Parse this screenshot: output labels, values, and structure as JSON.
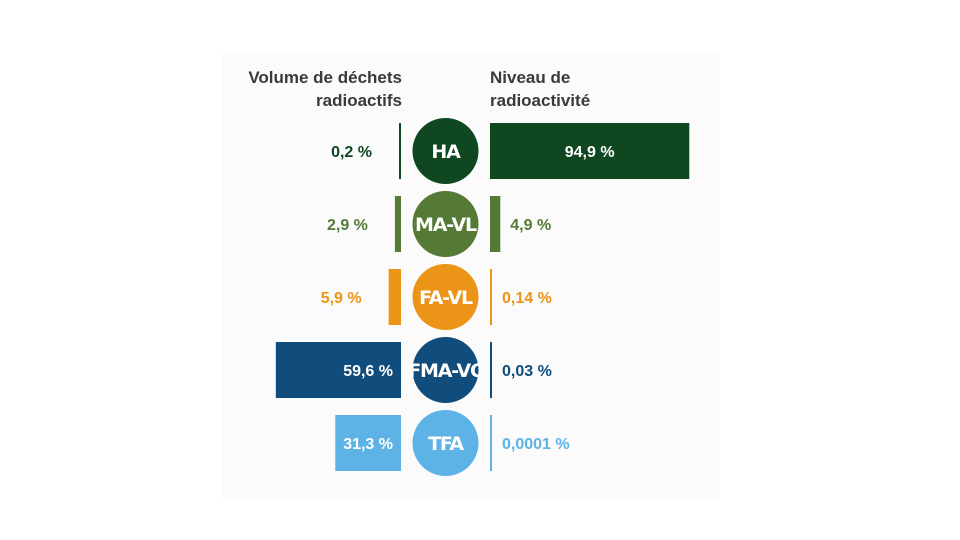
{
  "headers": {
    "left": [
      "Volume de déchets",
      "radioactifs"
    ],
    "right": [
      "Niveau de",
      "radioactivité"
    ]
  },
  "chart_data": {
    "type": "bar",
    "orientation": "horizontal-butterfly",
    "categories": [
      "HA",
      "MA-VL",
      "FA-VL",
      "FMA-VC",
      "TFA"
    ],
    "series": [
      {
        "name": "Volume de déchets radioactifs",
        "values": [
          0.2,
          2.9,
          5.9,
          59.6,
          31.3
        ],
        "labels": [
          "0,2 %",
          "2,9 %",
          "5,9 %",
          "59,6 %",
          "31,3 %"
        ]
      },
      {
        "name": "Niveau de radioactivité",
        "values": [
          94.9,
          4.9,
          0.14,
          0.03,
          0.0001
        ],
        "labels": [
          "94,9 %",
          "4,9 %",
          "0,14 %",
          "0,03 %",
          "0,0001 %"
        ]
      }
    ],
    "colors": [
      "#0f4721",
      "#557a36",
      "#ec9418",
      "#114d7c",
      "#5db3e6"
    ],
    "label_inside_bar_color": "#ffffff",
    "xlim": [
      0,
      100
    ]
  }
}
